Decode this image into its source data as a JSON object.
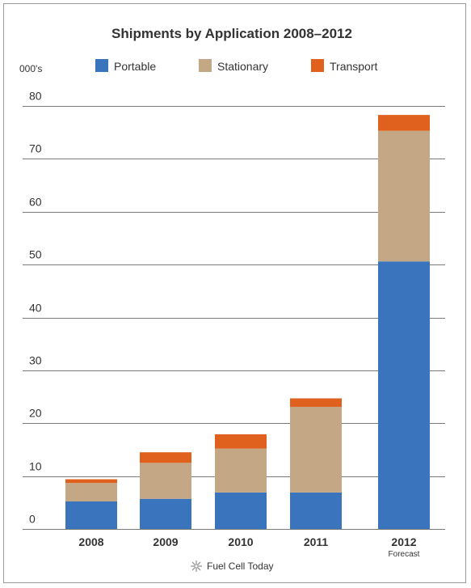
{
  "chart_data": {
    "type": "bar",
    "stacked": true,
    "title": "Shipments by Application 2008–2012",
    "unit_label": "000's",
    "categories": [
      "2008",
      "2009",
      "2010",
      "2011",
      "2012"
    ],
    "category_notes": [
      "",
      "",
      "",
      "",
      "Forecast"
    ],
    "series": [
      {
        "name": "Portable",
        "color": "#3a74bd",
        "values": [
          5.2,
          5.7,
          6.9,
          6.9,
          50.6
        ]
      },
      {
        "name": "Stationary",
        "color": "#c4a784",
        "values": [
          3.5,
          6.8,
          8.3,
          16.2,
          24.7
        ]
      },
      {
        "name": "Transport",
        "color": "#e0601e",
        "values": [
          0.7,
          2.0,
          2.7,
          1.6,
          3.0
        ]
      }
    ],
    "ylim": [
      0,
      80
    ],
    "yticks": [
      0,
      10,
      20,
      30,
      40,
      50,
      60,
      70,
      80
    ],
    "grid": true,
    "legend_position": "top",
    "source": "Fuel Cell Today"
  }
}
